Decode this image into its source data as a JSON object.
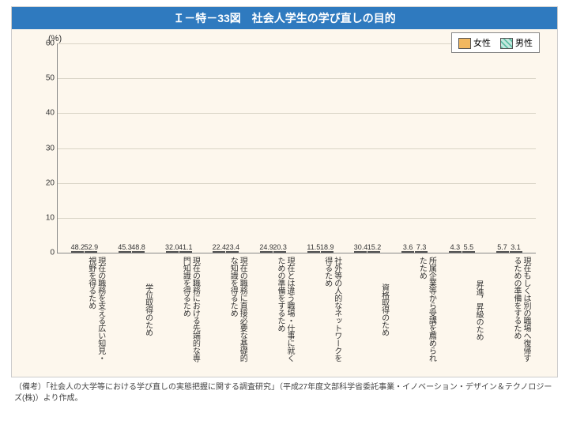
{
  "title": "Ｉ－特－33図　社会人学生の学び直しの目的",
  "unit_label": "(%)",
  "y_axis": {
    "min": 0,
    "max": 60,
    "step": 10
  },
  "legend": {
    "female": "女性",
    "male": "男性"
  },
  "colors": {
    "title_bg": "#2f7abf",
    "panel_bg": "#fdf7ed",
    "female_fill": "#f2b860",
    "male_fill": "#c6e8df",
    "male_hatch": "#5fbfa5",
    "axis": "#888888",
    "grid": "#d9d4c6",
    "text": "#333333"
  },
  "series": [
    {
      "label": "現在の職務を支える広い知見・視野を得るため",
      "female": 48.2,
      "male": 52.9
    },
    {
      "label": "学位取得のため",
      "female": 45.3,
      "male": 48.8
    },
    {
      "label": "現在の職務における先端的な専門知識を得るため",
      "female": 32.0,
      "male": 41.1
    },
    {
      "label": "現在の職務に直接必要な基礎的な知識を得るため",
      "female": 22.4,
      "male": 23.4
    },
    {
      "label": "現在とは違う職場・仕事に就くための準備をするため",
      "female": 24.9,
      "male": 20.3
    },
    {
      "label": "社外等の人的なネットワークを得るため",
      "female": 11.5,
      "male": 18.9
    },
    {
      "label": "資格取得のため",
      "female": 30.4,
      "male": 15.2
    },
    {
      "label": "所属企業等から受講を薦められたため",
      "female": 3.6,
      "male": 7.3
    },
    {
      "label": "昇進，昇級のため",
      "female": 4.3,
      "male": 5.5
    },
    {
      "label": "現在もしくは別の職場へ復帰するための準備をするため",
      "female": 5.7,
      "male": 3.1
    }
  ],
  "footnote_prefix": "（備考）",
  "footnote": "「社会人の大学等における学び直しの実態把握に関する調査研究」（平成27年度文部科学省委託事業・イノベーション・デザイン＆テクノロジーズ(株)）より作成。"
}
